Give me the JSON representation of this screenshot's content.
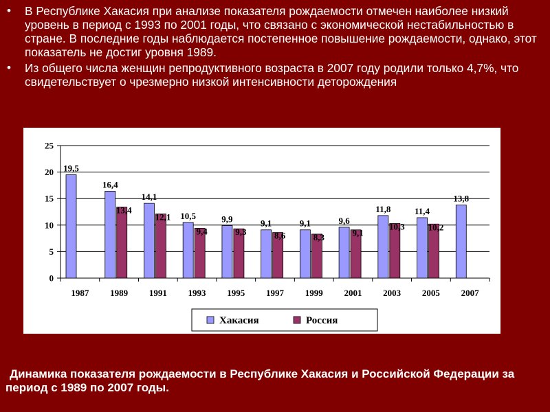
{
  "bullets": [
    "В Республике Хакасия при анализе показателя рождаемости отмечен наиболее низкий уровень в период с 1993 по 2001 годы, что связано с экономической нестабильностью в стране. В последние годы наблюдается постепенное повышение рождаемости, однако, этот показатель не достиг уровня 1989.",
    "Из общего числа женщин репродуктивного возраста в 2007 году родили только 4,7%, что свидетельствует о чрезмерно низкой интенсивности деторождения"
  ],
  "caption": "Динамика показателя рождаемости в Республике Хакасия и Российской Федерации за период с 1989 по 2007 годы.",
  "colors": {
    "background": "#800000",
    "khakasia": "#9999ff",
    "russia": "#993366"
  },
  "chart_data": {
    "type": "bar",
    "categories": [
      "1987",
      "1989",
      "1991",
      "1993",
      "1995",
      "1997",
      "1999",
      "2001",
      "2003",
      "2005",
      "2007"
    ],
    "series": [
      {
        "name": "Хакасия",
        "values": [
          19.5,
          16.4,
          14.1,
          10.5,
          9.9,
          9.1,
          9.1,
          9.6,
          11.8,
          11.4,
          13.8
        ],
        "labels": [
          "19,5",
          "16,4",
          "14,1",
          "10,5",
          "9,9",
          "9,1",
          "9,1",
          "9,6",
          "11,8",
          "11,4",
          "13,8"
        ]
      },
      {
        "name": "Россия",
        "values": [
          null,
          13.4,
          12.1,
          9.4,
          9.3,
          8.6,
          8.3,
          9.1,
          10.3,
          10.2,
          null
        ],
        "labels": [
          "",
          "13,4",
          "12,1",
          "9,4",
          "9,3",
          "8,6",
          "8,3",
          "9,1",
          "10,3",
          "10,2",
          ""
        ]
      }
    ],
    "yticks": [
      "0",
      "5",
      "10",
      "15",
      "20",
      "25"
    ],
    "ylim": [
      0,
      25
    ],
    "grid": true,
    "legend": "bottom-center"
  }
}
